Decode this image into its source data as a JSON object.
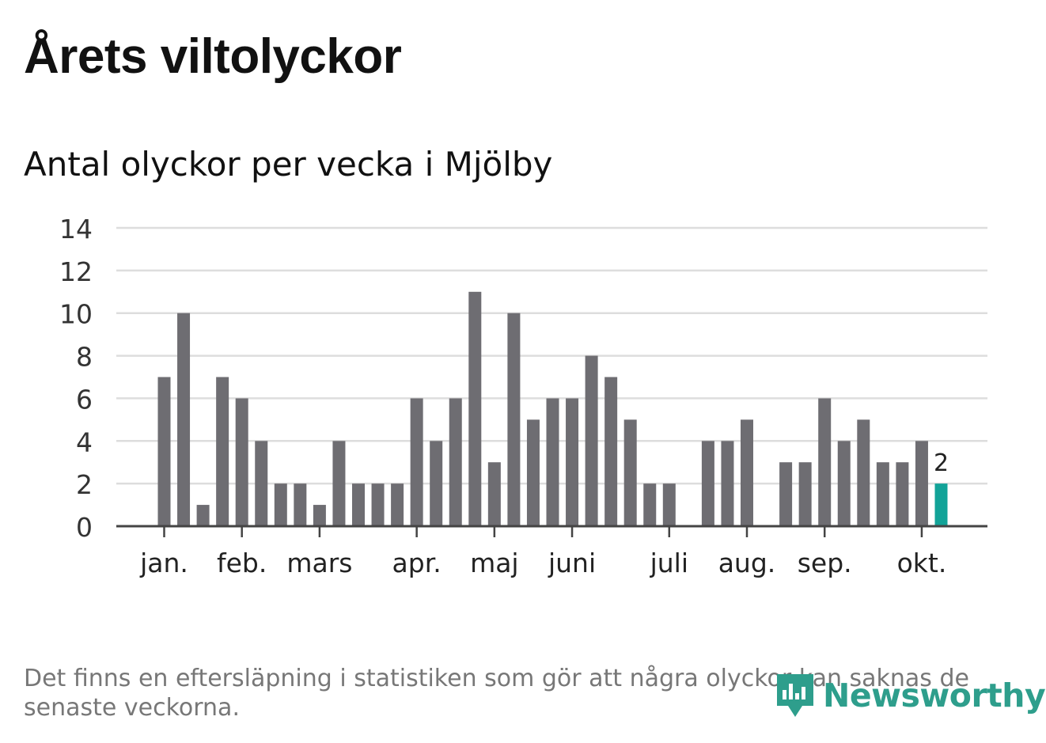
{
  "header": {
    "title": "Årets viltolyckor",
    "subtitle": "Antal olyckor per vecka i Mjölby"
  },
  "footer": {
    "note": "Det finns en eftersläpning i statistiken som gör att några olyckor kan saknas de senaste veckorna.",
    "logo_text": "Newsworthy"
  },
  "colors": {
    "bar": "#6e6d72",
    "highlight": "#12a398",
    "grid": "#dddddd",
    "axis": "#444444",
    "brand": "#2e9e8c"
  },
  "chart_data": {
    "type": "bar",
    "title": "Antal olyckor per vecka i Mjölby",
    "xlabel": "",
    "ylabel": "",
    "ylim": [
      0,
      14
    ],
    "yticks": [
      0,
      2,
      4,
      6,
      8,
      10,
      12,
      14
    ],
    "grid": true,
    "weeks": [
      1,
      2,
      3,
      4,
      5,
      6,
      7,
      8,
      9,
      10,
      11,
      12,
      13,
      14,
      15,
      16,
      17,
      18,
      19,
      20,
      21,
      22,
      23,
      24,
      25,
      26,
      27,
      28,
      29,
      30,
      31,
      32,
      33,
      34,
      35,
      36,
      37,
      38,
      39,
      40,
      41
    ],
    "values": [
      7,
      10,
      1,
      7,
      6,
      4,
      2,
      2,
      1,
      4,
      2,
      2,
      2,
      6,
      4,
      6,
      11,
      3,
      10,
      5,
      6,
      6,
      8,
      7,
      5,
      2,
      2,
      0,
      4,
      4,
      5,
      0,
      3,
      3,
      6,
      4,
      5,
      3,
      3,
      4,
      2
    ],
    "highlight_index": 40,
    "highlight_label": "2",
    "month_ticks": [
      {
        "label": "jan.",
        "week": 1
      },
      {
        "label": "feb.",
        "week": 5
      },
      {
        "label": "mars",
        "week": 9
      },
      {
        "label": "apr.",
        "week": 14
      },
      {
        "label": "maj",
        "week": 18
      },
      {
        "label": "juni",
        "week": 22
      },
      {
        "label": "juli",
        "week": 27
      },
      {
        "label": "aug.",
        "week": 31
      },
      {
        "label": "sep.",
        "week": 35
      },
      {
        "label": "okt.",
        "week": 40
      }
    ]
  }
}
